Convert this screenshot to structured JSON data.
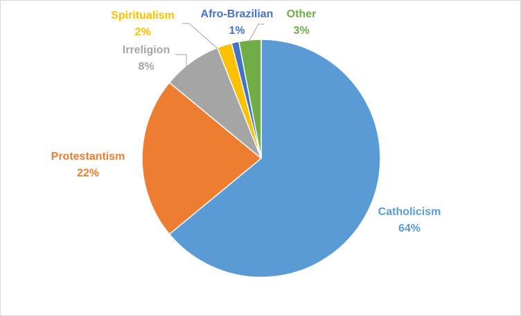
{
  "chart_data": {
    "type": "pie",
    "title": "",
    "slices": [
      {
        "name": "Catholicism",
        "value": 64,
        "label": "64%",
        "color": "#5B9BD5"
      },
      {
        "name": "Protestantism",
        "value": 22,
        "label": "22%",
        "color": "#ED7D31"
      },
      {
        "name": "Irreligion",
        "value": 8,
        "label": "8%",
        "color": "#A5A5A5"
      },
      {
        "name": "Spiritualism",
        "value": 2,
        "label": "2%",
        "color": "#FFC000"
      },
      {
        "name": "Afro-Brazilian",
        "value": 1,
        "label": "1%",
        "color": "#4472C4"
      },
      {
        "name": "Other",
        "value": 3,
        "label": "3%",
        "color": "#70AD47"
      }
    ]
  }
}
